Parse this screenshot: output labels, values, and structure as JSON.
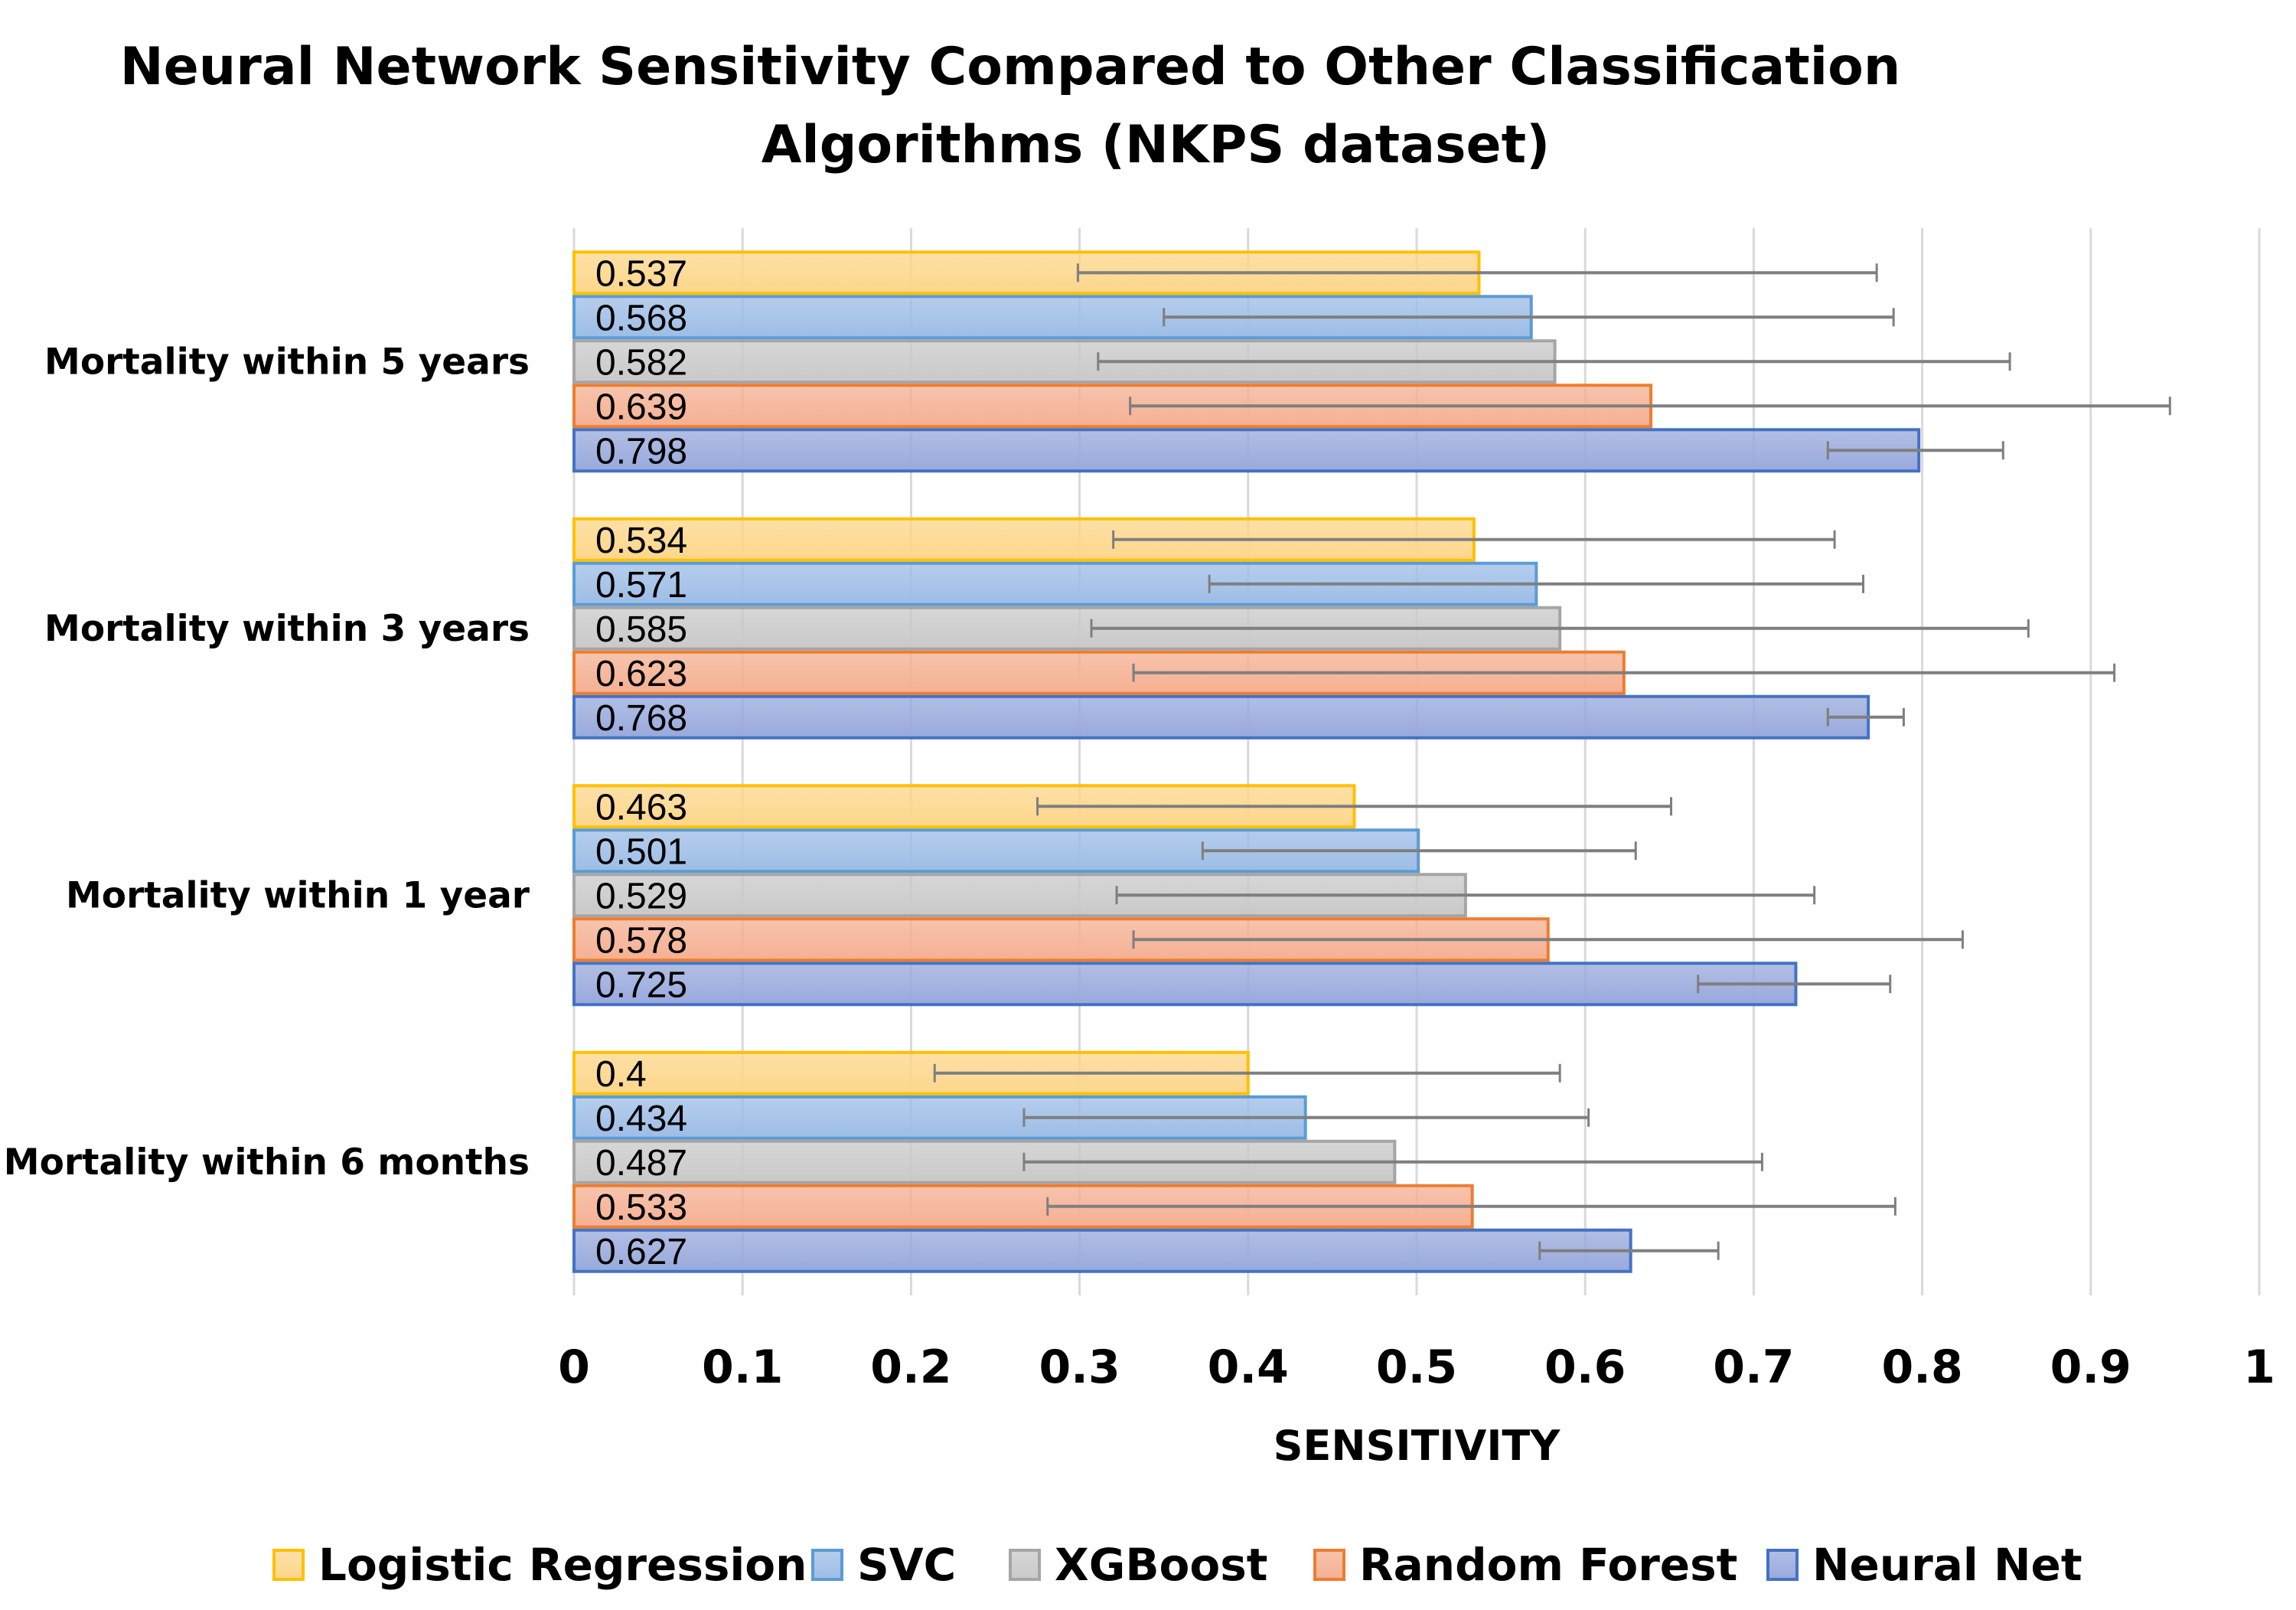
{
  "chart_data": {
    "type": "bar",
    "orientation": "horizontal",
    "title": "Neural Network Sensitivity Compared to Other Classification Algorithms (NKPS dataset)",
    "title_lines": [
      "Neural Network Sensitivity Compared to Other Classification",
      "Algorithms (NKPS dataset)"
    ],
    "xlabel": "SENSITIVITY",
    "ylabel": "",
    "xlim": [
      0,
      1
    ],
    "xticks": [
      "0",
      "0.1",
      "0.2",
      "0.3",
      "0.4",
      "0.5",
      "0.6",
      "0.7",
      "0.8",
      "0.9",
      "1"
    ],
    "grid": "vertical",
    "legend_position": "bottom",
    "categories": [
      "Mortality within 5 years",
      "Mortality within 3 years",
      "Mortality within 1 year",
      "Mortality within 6 months"
    ],
    "series": [
      {
        "name": "Logistic Regression",
        "fill": "#fdd68a",
        "stroke": "#ffc000",
        "values": [
          0.537,
          0.534,
          0.463,
          0.4
        ],
        "labels": [
          "0.537",
          "0.534",
          "0.463",
          "0.4"
        ],
        "error_low": [
          0.299,
          0.32,
          0.275,
          0.214
        ],
        "error_high": [
          0.773,
          0.748,
          0.651,
          0.585
        ]
      },
      {
        "name": "SVC",
        "fill": "#9dbde6",
        "stroke": "#5b9bd5",
        "values": [
          0.568,
          0.571,
          0.501,
          0.434
        ],
        "labels": [
          "0.568",
          "0.571",
          "0.501",
          "0.434"
        ],
        "error_low": [
          0.35,
          0.377,
          0.373,
          0.267
        ],
        "error_high": [
          0.783,
          0.765,
          0.63,
          0.602
        ]
      },
      {
        "name": "XGBoost",
        "fill": "#c9c9c9",
        "stroke": "#a5a5a5",
        "values": [
          0.582,
          0.585,
          0.529,
          0.487
        ],
        "labels": [
          "0.582",
          "0.585",
          "0.529",
          "0.487"
        ],
        "error_low": [
          0.311,
          0.307,
          0.322,
          0.267
        ],
        "error_high": [
          0.852,
          0.863,
          0.736,
          0.705
        ]
      },
      {
        "name": "Random Forest",
        "fill": "#f5b092",
        "stroke": "#ed7d31",
        "values": [
          0.639,
          0.623,
          0.578,
          0.533
        ],
        "labels": [
          "0.639",
          "0.623",
          "0.578",
          "0.533"
        ],
        "error_low": [
          0.33,
          0.332,
          0.332,
          0.281
        ],
        "error_high": [
          0.947,
          0.914,
          0.824,
          0.784
        ]
      },
      {
        "name": "Neural Net",
        "fill": "#98a9dc",
        "stroke": "#4472c4",
        "values": [
          0.798,
          0.768,
          0.725,
          0.627
        ],
        "labels": [
          "0.798",
          "0.768",
          "0.725",
          "0.627"
        ],
        "error_low": [
          0.744,
          0.744,
          0.667,
          0.573
        ],
        "error_high": [
          0.848,
          0.789,
          0.781,
          0.679
        ]
      }
    ],
    "error_bar_color": "#7f7f7f"
  }
}
